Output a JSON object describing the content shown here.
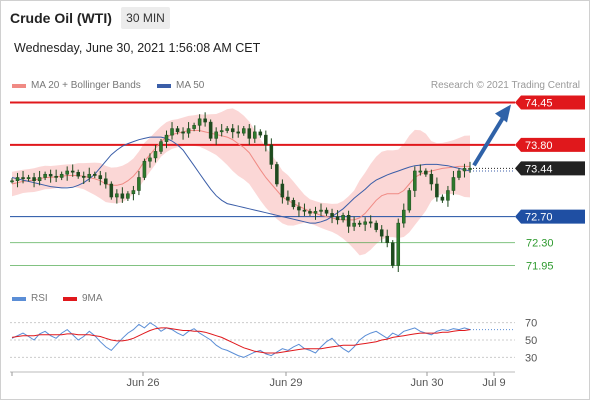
{
  "header": {
    "title": "Crude Oil (WTI)",
    "timeframe": "30 MIN",
    "datetime": "Wednesday, June 30, 2021 1:56:08 AM CET"
  },
  "legend": {
    "ma20": "MA 20 + Bollinger Bands",
    "ma50": "MA 50",
    "credit": "Research © 2021 Trading Central",
    "rsi": "RSI",
    "ma9": "9MA"
  },
  "colors": {
    "resistance": "#e0181c",
    "current": "#222222",
    "support_blue": "#1f4fa3",
    "support_green": "#2e9a2e",
    "ma20": "#f08a84",
    "ma50": "#3b5ea8",
    "bollinger_fill": "#fbd3d1",
    "candle_up": "#2d7a2d",
    "candle_down": "#1e4a1e",
    "arrow": "#2f62a8",
    "rsi": "#5b8ed6",
    "rsi_ma": "#e0181c"
  },
  "chart_data": [
    {
      "type": "candlestick",
      "y_range": [
        71.85,
        74.55
      ],
      "x_ticks": [
        "Jun 26",
        "Jun 29",
        "Jun 30",
        "Jul 9"
      ],
      "levels": [
        {
          "value": 74.45,
          "label": "74.45",
          "style": "resistance"
        },
        {
          "value": 73.8,
          "label": "73.80",
          "style": "resistance"
        },
        {
          "value": 73.44,
          "label": "73.44",
          "style": "current"
        },
        {
          "value": 72.7,
          "label": "72.70",
          "style": "support_blue"
        },
        {
          "value": 72.3,
          "label": "72.30",
          "style": "support_green"
        },
        {
          "value": 71.95,
          "label": "71.95",
          "style": "support_green"
        }
      ],
      "close": [
        73.25,
        73.3,
        73.28,
        73.3,
        73.25,
        73.3,
        73.35,
        73.32,
        73.3,
        73.35,
        73.4,
        73.38,
        73.32,
        73.3,
        73.35,
        73.33,
        73.28,
        73.2,
        73.0,
        73.05,
        72.98,
        73.05,
        73.1,
        73.3,
        73.55,
        73.6,
        73.7,
        73.85,
        73.95,
        74.05,
        74.0,
        73.98,
        74.05,
        74.1,
        74.2,
        74.15,
        73.9,
        74.0,
        74.02,
        74.05,
        74.0,
        73.98,
        74.05,
        73.9,
        74.0,
        73.95,
        73.8,
        73.5,
        73.2,
        73.0,
        72.95,
        72.85,
        72.8,
        72.78,
        72.75,
        72.78,
        72.8,
        72.75,
        72.7,
        72.65,
        72.72,
        72.55,
        72.6,
        72.58,
        72.62,
        72.6,
        72.5,
        72.4,
        72.3,
        71.95,
        72.6,
        72.8,
        73.1,
        73.4,
        73.4,
        73.35,
        73.2,
        73.0,
        72.95,
        73.1,
        73.3,
        73.4,
        73.44,
        73.44
      ],
      "ma20": [
        73.2,
        73.22,
        73.24,
        73.25,
        73.26,
        73.28,
        73.3,
        73.3,
        73.31,
        73.32,
        73.33,
        73.33,
        73.33,
        73.32,
        73.3,
        73.28,
        73.25,
        73.2,
        73.18,
        73.18,
        73.2,
        73.25,
        73.32,
        73.42,
        73.55,
        73.65,
        73.75,
        73.85,
        73.92,
        73.96,
        73.98,
        74.0,
        74.02,
        74.02,
        74.02,
        74.0,
        73.98,
        73.96,
        73.94,
        73.92,
        73.88,
        73.82,
        73.76,
        73.68,
        73.55,
        73.42,
        73.3,
        73.2,
        73.1,
        73.0,
        72.95,
        72.9,
        72.86,
        72.82,
        72.78,
        72.75,
        72.72,
        72.7,
        72.68,
        72.66,
        72.65,
        72.65,
        72.65,
        72.68,
        72.75,
        72.85,
        72.95,
        73.02,
        73.05,
        73.05,
        73.05,
        73.1,
        73.2,
        73.3,
        73.35,
        73.38,
        73.4,
        73.42,
        73.44,
        73.45,
        73.46,
        73.47,
        73.47,
        73.47
      ],
      "ma50": [
        73.3,
        73.28,
        73.26,
        73.24,
        73.22,
        73.2,
        73.18,
        73.16,
        73.15,
        73.14,
        73.14,
        73.15,
        73.18,
        73.22,
        73.28,
        73.35,
        73.45,
        73.55,
        73.65,
        73.72,
        73.78,
        73.82,
        73.85,
        73.88,
        73.9,
        73.92,
        73.92,
        73.92,
        73.9,
        73.86,
        73.8,
        73.72,
        73.6,
        73.48,
        73.36,
        73.24,
        73.12,
        73.02,
        72.95,
        72.9,
        72.88,
        72.86,
        72.84,
        72.82,
        72.8,
        72.78,
        72.76,
        72.74,
        72.72,
        72.7,
        72.68,
        72.66,
        72.64,
        72.62,
        72.6,
        72.6,
        72.62,
        72.65,
        72.7,
        72.76,
        72.82,
        72.9,
        72.98,
        73.05,
        73.12,
        73.2,
        73.26,
        73.3,
        73.34,
        73.37,
        73.4,
        73.43,
        73.46,
        73.48,
        73.49,
        73.5,
        73.5,
        73.5,
        73.49,
        73.48,
        73.46,
        73.44,
        73.42,
        73.4
      ]
    },
    {
      "type": "line",
      "title": "RSI",
      "y_ticks": [
        70,
        50,
        30
      ],
      "y_range": [
        20,
        80
      ],
      "series": [
        {
          "name": "RSI",
          "values": [
            52,
            55,
            58,
            54,
            50,
            57,
            60,
            55,
            52,
            58,
            62,
            56,
            50,
            54,
            60,
            55,
            48,
            42,
            38,
            45,
            52,
            58,
            62,
            68,
            64,
            70,
            66,
            60,
            64,
            62,
            58,
            55,
            60,
            63,
            58,
            54,
            50,
            44,
            40,
            38,
            35,
            32,
            30,
            33,
            36,
            38,
            34,
            32,
            36,
            40,
            38,
            42,
            45,
            40,
            38,
            35,
            42,
            48,
            52,
            45,
            40,
            36,
            42,
            50,
            55,
            58,
            60,
            56,
            52,
            58,
            55,
            60,
            62,
            64,
            60,
            58,
            56,
            60,
            62,
            61,
            63,
            62,
            64,
            62
          ]
        },
        {
          "name": "9MA",
          "values": [
            53,
            54,
            55,
            55,
            55,
            56,
            56,
            56,
            56,
            56,
            57,
            57,
            56,
            56,
            56,
            55,
            54,
            52,
            50,
            49,
            49,
            50,
            52,
            55,
            58,
            61,
            63,
            64,
            64,
            63,
            62,
            61,
            61,
            60,
            60,
            59,
            57,
            55,
            53,
            50,
            47,
            44,
            41,
            39,
            37,
            36,
            35,
            35,
            35,
            36,
            37,
            38,
            39,
            40,
            40,
            40,
            40,
            41,
            42,
            43,
            44,
            44,
            44,
            45,
            46,
            47,
            48,
            50,
            51,
            53,
            54,
            55,
            56,
            57,
            58,
            58,
            58,
            58,
            59,
            59,
            60,
            61,
            61,
            62
          ]
        }
      ]
    }
  ]
}
